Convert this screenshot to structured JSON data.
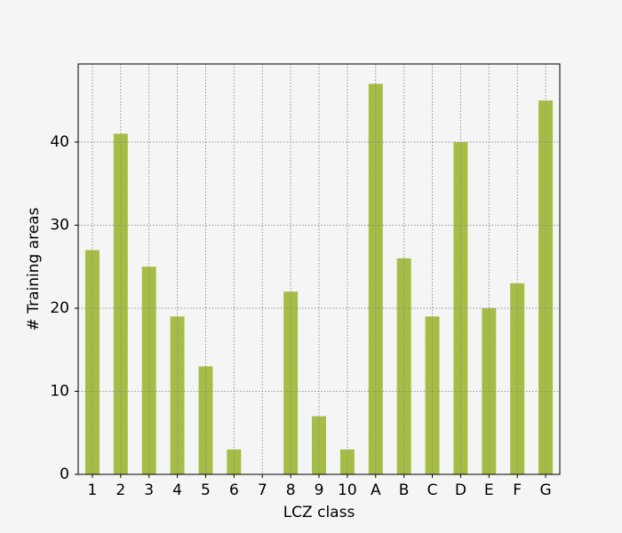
{
  "chart_data": {
    "type": "bar",
    "x_label": "LCZ class",
    "y_label": "# Training areas",
    "categories": [
      "1",
      "2",
      "3",
      "4",
      "5",
      "6",
      "7",
      "8",
      "9",
      "10",
      "A",
      "B",
      "C",
      "D",
      "E",
      "F",
      "G"
    ],
    "values": [
      27,
      41,
      25,
      19,
      13,
      3,
      0,
      22,
      7,
      3,
      47,
      26,
      19,
      40,
      20,
      23,
      45
    ],
    "color": "#a5bd45",
    "ylim": [
      0,
      49.4
    ],
    "yticks": [
      0,
      10,
      20,
      30,
      40
    ],
    "grid": true
  }
}
